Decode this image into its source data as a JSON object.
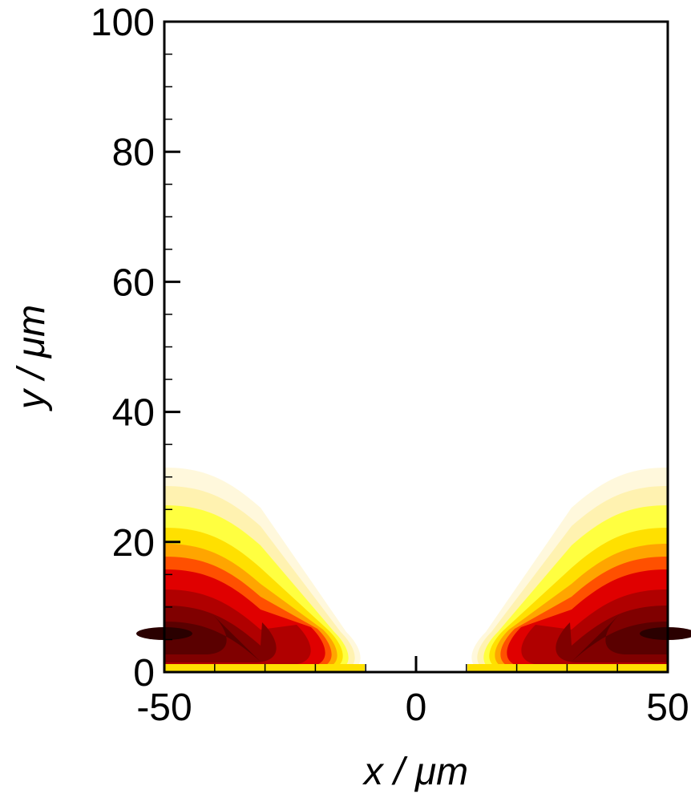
{
  "chart_data": {
    "type": "contour",
    "xlabel": "x / μm",
    "ylabel": "y / μm",
    "xlim": [
      -50,
      50
    ],
    "ylim": [
      0,
      100
    ],
    "xticks": [
      -50,
      0,
      50
    ],
    "yticks": [
      0,
      20,
      40,
      60,
      80,
      100
    ]
  }
}
